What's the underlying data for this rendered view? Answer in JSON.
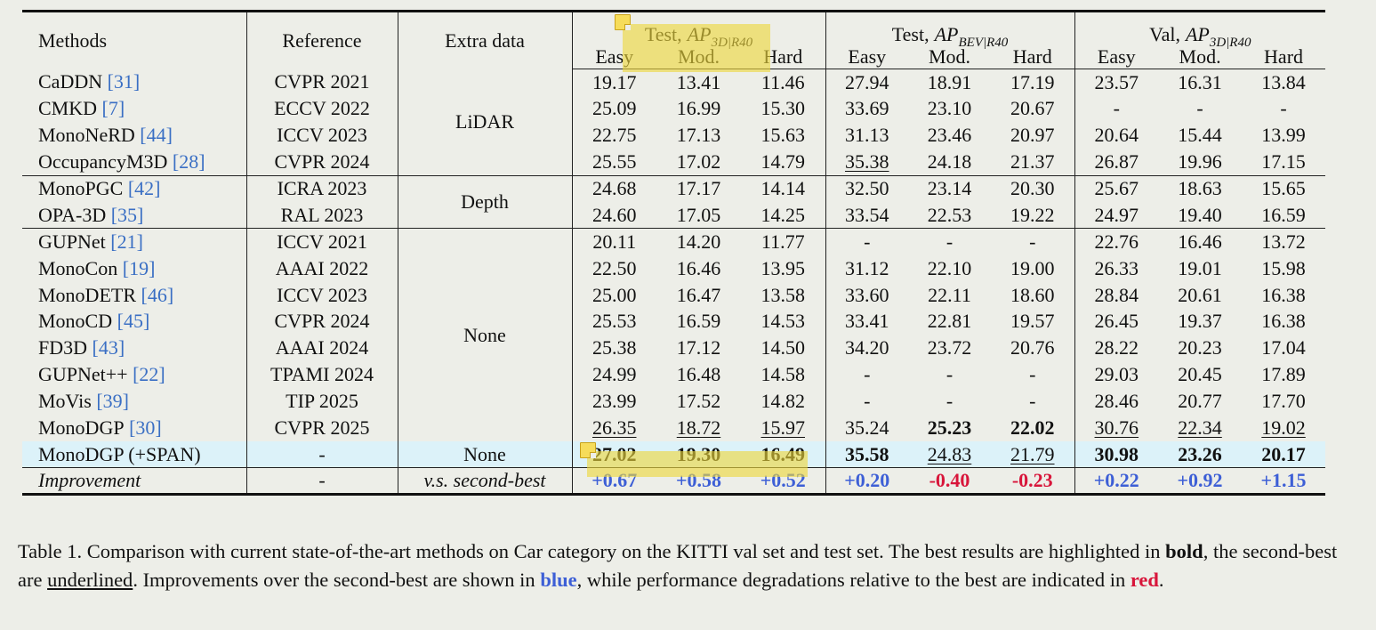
{
  "table": {
    "header": {
      "methods": "Methods",
      "reference": "Reference",
      "extra": "Extra data",
      "groups": [
        {
          "prefix": "Test,",
          "metric": "AP",
          "subscript": "3D|R40",
          "columns": [
            "Easy",
            "Mod.",
            "Hard"
          ]
        },
        {
          "prefix": "Test,",
          "metric": "AP",
          "subscript": "BEV|R40",
          "columns": [
            "Easy",
            "Mod.",
            "Hard"
          ]
        },
        {
          "prefix": "Val,",
          "metric": "AP",
          "subscript": "3D|R40",
          "columns": [
            "Easy",
            "Mod.",
            "Hard"
          ]
        }
      ]
    },
    "sections": [
      {
        "extra": "LiDAR",
        "rows": [
          {
            "method": "CaDDN",
            "cite": "[31]",
            "reference": "CVPR 2021",
            "values": [
              "19.17",
              "13.41",
              "11.46",
              "27.94",
              "18.91",
              "17.19",
              "23.57",
              "16.31",
              "13.84"
            ]
          },
          {
            "method": "CMKD",
            "cite": "[7]",
            "reference": "ECCV 2022",
            "values": [
              "25.09",
              "16.99",
              "15.30",
              "33.69",
              "23.10",
              "20.67",
              "-",
              "-",
              "-"
            ]
          },
          {
            "method": "MonoNeRD",
            "cite": "[44]",
            "reference": "ICCV 2023",
            "values": [
              "22.75",
              "17.13",
              "15.63",
              "31.13",
              "23.46",
              "20.97",
              "20.64",
              "15.44",
              "13.99"
            ]
          },
          {
            "method": "OccupancyM3D",
            "cite": "[28]",
            "reference": "CVPR 2024",
            "values": [
              "25.55",
              "17.02",
              "14.79",
              "35.38",
              "24.18",
              "21.37",
              "26.87",
              "19.96",
              "17.15"
            ],
            "underline": [
              3
            ]
          }
        ]
      },
      {
        "extra": "Depth",
        "rows": [
          {
            "method": "MonoPGC",
            "cite": "[42]",
            "reference": "ICRA 2023",
            "values": [
              "24.68",
              "17.17",
              "14.14",
              "32.50",
              "23.14",
              "20.30",
              "25.67",
              "18.63",
              "15.65"
            ]
          },
          {
            "method": "OPA-3D",
            "cite": "[35]",
            "reference": "RAL 2023",
            "values": [
              "24.60",
              "17.05",
              "14.25",
              "33.54",
              "22.53",
              "19.22",
              "24.97",
              "19.40",
              "16.59"
            ]
          }
        ]
      },
      {
        "extra": "None",
        "rows": [
          {
            "method": "GUPNet",
            "cite": "[21]",
            "reference": "ICCV 2021",
            "values": [
              "20.11",
              "14.20",
              "11.77",
              "-",
              "-",
              "-",
              "22.76",
              "16.46",
              "13.72"
            ]
          },
          {
            "method": "MonoCon",
            "cite": "[19]",
            "reference": "AAAI 2022",
            "values": [
              "22.50",
              "16.46",
              "13.95",
              "31.12",
              "22.10",
              "19.00",
              "26.33",
              "19.01",
              "15.98"
            ]
          },
          {
            "method": "MonoDETR",
            "cite": "[46]",
            "reference": "ICCV 2023",
            "values": [
              "25.00",
              "16.47",
              "13.58",
              "33.60",
              "22.11",
              "18.60",
              "28.84",
              "20.61",
              "16.38"
            ]
          },
          {
            "method": "MonoCD",
            "cite": "[45]",
            "reference": "CVPR 2024",
            "values": [
              "25.53",
              "16.59",
              "14.53",
              "33.41",
              "22.81",
              "19.57",
              "26.45",
              "19.37",
              "16.38"
            ]
          },
          {
            "method": "FD3D",
            "cite": "[43]",
            "reference": "AAAI 2024",
            "values": [
              "25.38",
              "17.12",
              "14.50",
              "34.20",
              "23.72",
              "20.76",
              "28.22",
              "20.23",
              "17.04"
            ]
          },
          {
            "method": "GUPNet++",
            "cite": "[22]",
            "reference": "TPAMI 2024",
            "values": [
              "24.99",
              "16.48",
              "14.58",
              "-",
              "-",
              "-",
              "29.03",
              "20.45",
              "17.89"
            ]
          },
          {
            "method": "MoVis",
            "cite": "[39]",
            "reference": "TIP 2025",
            "values": [
              "23.99",
              "17.52",
              "14.82",
              "-",
              "-",
              "-",
              "28.46",
              "20.77",
              "17.70"
            ]
          },
          {
            "method": "MonoDGP",
            "cite": "[30]",
            "reference": "CVPR 2025",
            "values": [
              "26.35",
              "18.72",
              "15.97",
              "35.24",
              "25.23",
              "22.02",
              "30.76",
              "22.34",
              "19.02"
            ],
            "bold": [
              4,
              5
            ],
            "underline": [
              0,
              1,
              2,
              6,
              7,
              8
            ]
          }
        ]
      },
      {
        "extra": "None",
        "highlight": "#dcf2f9",
        "rows": [
          {
            "method": "MonoDGP (+SPAN)",
            "reference": "-",
            "values": [
              "27.02",
              "19.30",
              "16.49",
              "35.58",
              "24.83",
              "21.79",
              "30.98",
              "23.26",
              "20.17"
            ],
            "bold": [
              0,
              1,
              2,
              3,
              6,
              7,
              8
            ],
            "underline": [
              4,
              5
            ]
          }
        ]
      },
      {
        "extra": "v.s. second-best",
        "italic": true,
        "rows": [
          {
            "method": "Improvement",
            "italic": true,
            "reference": "-",
            "values": [
              "+0.67",
              "+0.58",
              "+0.52",
              "+0.20",
              "-0.40",
              "-0.23",
              "+0.22",
              "+0.92",
              "+1.15"
            ],
            "bold": [
              0,
              1,
              2,
              3,
              4,
              5,
              6,
              7,
              8
            ],
            "colors": [
              "#3d5fd6",
              "#3d5fd6",
              "#3d5fd6",
              "#3d5fd6",
              "#d8153a",
              "#d8153a",
              "#3d5fd6",
              "#3d5fd6",
              "#3d5fd6"
            ]
          }
        ]
      }
    ]
  },
  "caption": [
    {
      "text": "Table 1. Comparison with current state-of-the-art methods on Car category on the KITTI val set and test set. The best results are highlighted in ",
      "style": "normal"
    },
    {
      "text": "bold",
      "style": "bold"
    },
    {
      "text": ", the second-best are ",
      "style": "normal"
    },
    {
      "text": "underlined",
      "style": "underline"
    },
    {
      "text": ". Improvements over the second-best are shown in ",
      "style": "normal"
    },
    {
      "text": "blue",
      "style": "blue"
    },
    {
      "text": ", while performance degradations relative to the best are indicated in ",
      "style": "normal"
    },
    {
      "text": "red",
      "style": "red"
    },
    {
      "text": ".",
      "style": "normal"
    }
  ]
}
